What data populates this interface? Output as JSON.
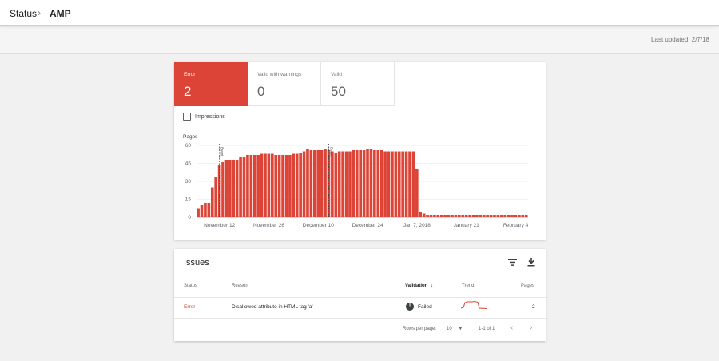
{
  "breadcrumb": {
    "parent": "Status",
    "separator": "›",
    "current": "AMP"
  },
  "last_updated": "Last updated: 2/7/18",
  "tiles": [
    {
      "label": "Error",
      "value": "2",
      "active": true
    },
    {
      "label": "Valid with warnings",
      "value": "0",
      "active": false
    },
    {
      "label": "Valid",
      "value": "50",
      "active": false
    }
  ],
  "impressions_label": "Impressions",
  "chart_data": {
    "type": "bar",
    "ylabel": "Pages",
    "ylim": [
      0,
      60
    ],
    "yticks": [
      "0",
      "15",
      "30",
      "45",
      "60"
    ],
    "xtick_labels": [
      "November 12",
      "November 26",
      "December 10",
      "December 24",
      "Jan 7, 2018",
      "January 21",
      "February 4"
    ],
    "xtick_index": [
      6,
      20,
      34,
      48,
      62,
      76,
      90
    ],
    "bar_color": "#db4437",
    "annotations": [
      {
        "index": 6,
        "label": "Event"
      },
      {
        "index": 37,
        "label": "Event"
      }
    ],
    "values": [
      7,
      10,
      12,
      12,
      25,
      34,
      44,
      46,
      48,
      48,
      48,
      48,
      50,
      50,
      52,
      52,
      52,
      52,
      53,
      53,
      53,
      53,
      52,
      52,
      52,
      52,
      52,
      53,
      53,
      54,
      55,
      57,
      56,
      56,
      56,
      56,
      57,
      56,
      55,
      54,
      55,
      55,
      55,
      55,
      56,
      56,
      56,
      56,
      57,
      57,
      56,
      56,
      56,
      55,
      55,
      55,
      55,
      55,
      55,
      55,
      55,
      55,
      40,
      4,
      3,
      2,
      2,
      2,
      2,
      2,
      2,
      2,
      2,
      2,
      2,
      2,
      2,
      2,
      2,
      2,
      2,
      2,
      2,
      2,
      2,
      2,
      2,
      2,
      2,
      2,
      2,
      2,
      2,
      2
    ]
  },
  "issues": {
    "title": "Issues",
    "headers": {
      "status": "Status",
      "reason": "Reason",
      "validation": "Validation",
      "trend": "Trend",
      "pages": "Pages"
    },
    "rows": [
      {
        "status": "Error",
        "reason": "Disallowed attribute in HTML tag 'a'",
        "validation": "Failed",
        "pages": "2"
      }
    ],
    "rows_per_page_label": "Rows per page:",
    "rows_per_page": "10",
    "range": "1-1 of 1"
  },
  "colors": {
    "error": "#db4437",
    "text": "#202124",
    "muted": "#5f6368"
  }
}
